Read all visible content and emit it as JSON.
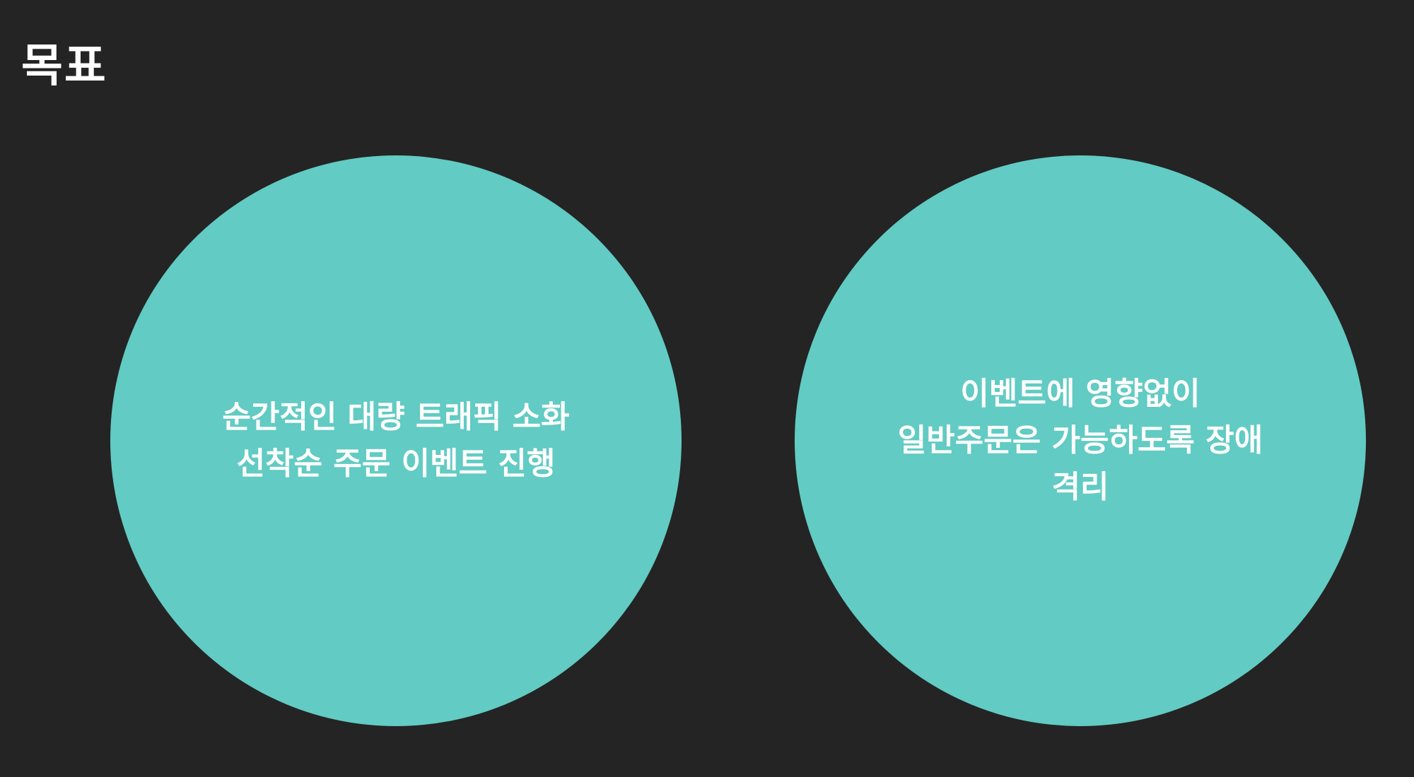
{
  "slide": {
    "title": "목표",
    "goals": [
      {
        "lines": [
          "순간적인 대량 트래픽 소화",
          "선착순 주문 이벤트 진행"
        ]
      },
      {
        "lines": [
          "이벤트에 영향없이",
          "일반주문은 가능하도록 장애",
          "격리"
        ]
      }
    ]
  },
  "colors": {
    "background": "#242424",
    "circle": "#62cbc3",
    "text": "#ffffff"
  }
}
